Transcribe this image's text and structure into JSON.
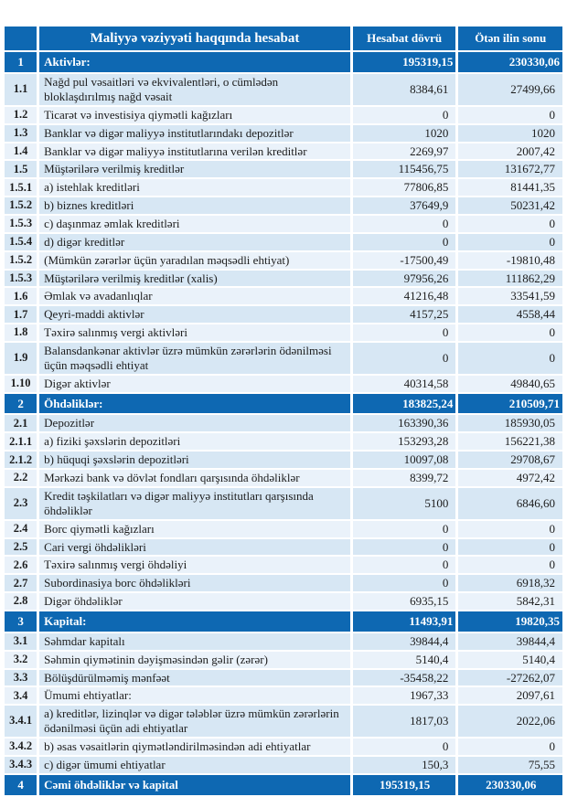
{
  "report": {
    "header": {
      "title": "Maliyyə vəziyyəti haqqında hesabat",
      "col_reporting_period": "Hesabat dövrü",
      "col_end_of_last_year": "Ötən ilin sonu"
    },
    "colors": {
      "header_bg": "#0e68b2",
      "row_blue": "#d7e7f4",
      "row_light": "#eaf2fa",
      "text_dark": "#1c1c1c"
    },
    "rows": [
      {
        "num": "1",
        "label": "Aktivlər:",
        "v1": "195319,15",
        "v2": "230330,06",
        "type": "section"
      },
      {
        "num": "1.1",
        "label": "Nağd pul vəsaitləri və ekvivalentləri, o cümlədən bloklaşdırılmış nağd vəsait",
        "v1": "8384,61",
        "v2": "27499,66",
        "type": "item"
      },
      {
        "num": "1.2",
        "label": "Ticarət və investisiya qiymətli kağızları",
        "v1": "0",
        "v2": "0",
        "type": "item"
      },
      {
        "num": "1.3",
        "label": "Banklar və digər maliyyə institutlarındakı depozitlər",
        "v1": "1020",
        "v2": "1020",
        "type": "item"
      },
      {
        "num": "1.4",
        "label": "Banklar və digər maliyyə institutlarına verilən kreditlər",
        "v1": "2269,97",
        "v2": "2007,42",
        "type": "item"
      },
      {
        "num": "1.5",
        "label": "Müştərilərə verilmiş kreditlər",
        "v1": "115456,75",
        "v2": "131672,77",
        "type": "item"
      },
      {
        "num": "1.5.1",
        "label": "a) istehlak kreditləri",
        "v1": "77806,85",
        "v2": "81441,35",
        "type": "item"
      },
      {
        "num": "1.5.2",
        "label": "b) biznes kreditləri",
        "v1": "37649,9",
        "v2": "50231,42",
        "type": "item"
      },
      {
        "num": "1.5.3",
        "label": "c) daşınmaz əmlak kreditləri",
        "v1": "0",
        "v2": "0",
        "type": "item"
      },
      {
        "num": "1.5.4",
        "label": "d) digər kreditlər",
        "v1": "0",
        "v2": "0",
        "type": "item"
      },
      {
        "num": "1.5.2",
        "label": "(Mümkün zərərlər üçün yaradılan məqsədli ehtiyat)",
        "v1": "-17500,49",
        "v2": "-19810,48",
        "type": "item"
      },
      {
        "num": "1.5.3",
        "label": "Müştərilərə verilmiş kreditlər (xalis)",
        "v1": "97956,26",
        "v2": "111862,29",
        "type": "item"
      },
      {
        "num": "1.6",
        "label": "Əmlak və avadanlıqlar",
        "v1": "41216,48",
        "v2": "33541,59",
        "type": "item"
      },
      {
        "num": "1.7",
        "label": "Qeyri-maddi aktivlər",
        "v1": "4157,25",
        "v2": "4558,44",
        "type": "item"
      },
      {
        "num": "1.8",
        "label": "Təxirə salınmış vergi aktivləri",
        "v1": "0",
        "v2": "0",
        "type": "item"
      },
      {
        "num": "1.9",
        "label": "Balansdankənar aktivlər üzrə mümkün zərərlərin ödənilməsi üçün məqsədli ehtiyat",
        "v1": "0",
        "v2": "0",
        "type": "item"
      },
      {
        "num": "1.10",
        "label": "Digər aktivlər",
        "v1": "40314,58",
        "v2": "49840,65",
        "type": "item"
      },
      {
        "num": "2",
        "label": "Öhdəliklər:",
        "v1": "183825,24",
        "v2": "210509,71",
        "type": "section"
      },
      {
        "num": "2.1",
        "label": "Depozitlər",
        "v1": "163390,36",
        "v2": "185930,05",
        "type": "item"
      },
      {
        "num": "2.1.1",
        "label": "a) fiziki şəxslərin depozitləri",
        "v1": "153293,28",
        "v2": "156221,38",
        "type": "item"
      },
      {
        "num": "2.1.2",
        "label": "b) hüquqi şəxslərin depozitləri",
        "v1": "10097,08",
        "v2": "29708,67",
        "type": "item"
      },
      {
        "num": "2.2",
        "label": "Mərkəzi bank və dövlət fondları qarşısında öhdəliklər",
        "v1": "8399,72",
        "v2": "4972,42",
        "type": "item"
      },
      {
        "num": "2.3",
        "label": "Kredit təşkilatları və digər maliyyə institutları qarşısında öhdəliklər",
        "v1": "5100",
        "v2": "6846,60",
        "type": "item"
      },
      {
        "num": "2.4",
        "label": "Borc qiymətli kağızları",
        "v1": "0",
        "v2": "0",
        "type": "item"
      },
      {
        "num": "2.5",
        "label": "Cari vergi öhdəlikləri",
        "v1": "0",
        "v2": "0",
        "type": "item"
      },
      {
        "num": "2.6",
        "label": "Təxirə salınmış vergi öhdəliyi",
        "v1": "0",
        "v2": "0",
        "type": "item"
      },
      {
        "num": "2.7",
        "label": "Subordinasiya borc öhdəlikləri",
        "v1": "0",
        "v2": "6918,32",
        "type": "item"
      },
      {
        "num": "2.8",
        "label": "Digər öhdəliklər",
        "v1": "6935,15",
        "v2": "5842,31",
        "type": "item"
      },
      {
        "num": "3",
        "label": "Kapital:",
        "v1": "11493,91",
        "v2": "19820,35",
        "type": "section"
      },
      {
        "num": "3.1",
        "label": "Səhmdar kapitalı",
        "v1": "39844,4",
        "v2": "39844,4",
        "type": "item"
      },
      {
        "num": "3.2",
        "label": "Səhmin qiymətinin dəyişməsindən gəlir (zərər)",
        "v1": "5140,4",
        "v2": "5140,4",
        "type": "item"
      },
      {
        "num": "3.3",
        "label": "Bölüşdürülməmiş mənfəət",
        "v1": "-35458,22",
        "v2": "-27262,07",
        "type": "item"
      },
      {
        "num": "3.4",
        "label": "Ümumi ehtiyatlar:",
        "v1": "1967,33",
        "v2": "2097,61",
        "type": "item"
      },
      {
        "num": "3.4.1",
        "label": "a) kreditlər, lizinqlər və digər tələblər üzrə mümkün zərərlərin ödənilməsi üçün adi ehtiyatlar",
        "v1": "1817,03",
        "v2": "2022,06",
        "type": "item"
      },
      {
        "num": "3.4.2",
        "label": "b) əsas vəsaitlərin qiymətləndirilməsindən adi ehtiyatlar",
        "v1": "0",
        "v2": "0",
        "type": "item"
      },
      {
        "num": "3.4.3",
        "label": "c) digər ümumi ehtiyatlar",
        "v1": "150,3",
        "v2": "75,55",
        "type": "item"
      },
      {
        "num": "4",
        "label": "Cəmi öhdəliklər və kapital",
        "v1": "195319,15",
        "v2": "230330,06",
        "type": "total"
      }
    ]
  }
}
